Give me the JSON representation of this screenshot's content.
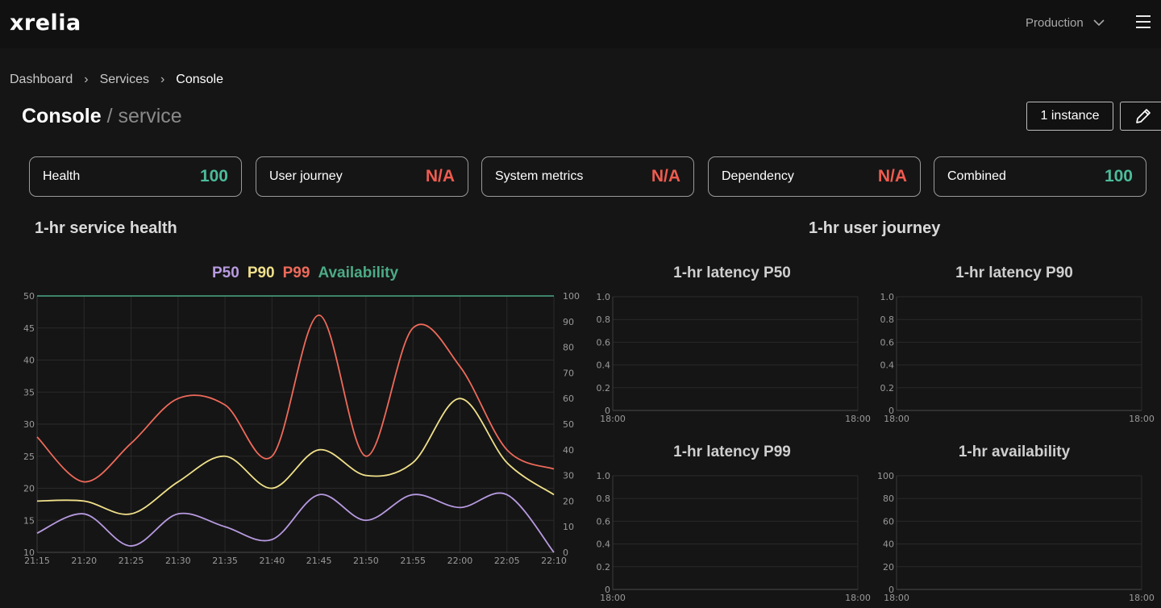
{
  "app": {
    "logo": "xrelia",
    "environment": "Production"
  },
  "icons": {
    "menu": "hamburger-icon",
    "env_dropdown": "chevron-down-icon",
    "edit": "pencil-icon"
  },
  "breadcrumb": [
    "Dashboard",
    "Services",
    "Console"
  ],
  "page": {
    "title": "Console",
    "subtitle": "/ service",
    "instance_label": "1 instance"
  },
  "colors": {
    "green": "#4cbb9a",
    "red": "#ef5b4f",
    "p50": "#b79ae0",
    "p90": "#f0e08a",
    "p99": "#ef6a5a",
    "availability": "#4caa86"
  },
  "cards": [
    {
      "label": "Health",
      "value": "100",
      "status": "green"
    },
    {
      "label": "User journey",
      "value": "N/A",
      "status": "red"
    },
    {
      "label": "System metrics",
      "value": "N/A",
      "status": "red"
    },
    {
      "label": "Dependency",
      "value": "N/A",
      "status": "red"
    },
    {
      "label": "Combined",
      "value": "100",
      "status": "green"
    }
  ],
  "sections": {
    "service_health": "1-hr service health",
    "user_journey": "1-hr user journey"
  },
  "legend": [
    "P50",
    "P90",
    "P99",
    "Availability"
  ],
  "chart_data": [
    {
      "type": "line",
      "x": [
        "21:15",
        "21:20",
        "21:25",
        "21:30",
        "21:35",
        "21:40",
        "21:45",
        "21:50",
        "21:55",
        "22:00",
        "22:05",
        "22:10"
      ],
      "ylim": [
        10,
        50
      ],
      "yticks": [
        10,
        15,
        20,
        25,
        30,
        35,
        40,
        45,
        50
      ],
      "y2lim": [
        0,
        100
      ],
      "y2ticks": [
        0,
        10,
        20,
        30,
        40,
        50,
        60,
        70,
        80,
        90,
        100
      ],
      "grid": true,
      "series": [
        {
          "name": "P50",
          "axis": "left",
          "values": [
            13,
            16,
            11,
            16,
            14,
            12,
            19,
            15,
            19,
            17,
            19,
            10
          ]
        },
        {
          "name": "P90",
          "axis": "left",
          "values": [
            18,
            18,
            16,
            21,
            25,
            20,
            26,
            22,
            24,
            34,
            24,
            19
          ]
        },
        {
          "name": "P99",
          "axis": "left",
          "values": [
            28,
            21,
            27,
            34,
            33,
            25,
            47,
            25,
            45,
            39,
            26,
            23
          ]
        },
        {
          "name": "Availability",
          "axis": "right",
          "values": [
            100,
            100,
            100,
            100,
            100,
            100,
            100,
            100,
            100,
            100,
            100,
            100
          ]
        }
      ]
    },
    {
      "type": "line",
      "title": "1-hr latency P50",
      "x": [
        "18:00",
        "18:00"
      ],
      "ylim": [
        0,
        1.0
      ],
      "yticks": [
        "0",
        "0.2",
        "0.4",
        "0.6",
        "0.8",
        "1.0"
      ],
      "series": []
    },
    {
      "type": "line",
      "title": "1-hr latency P90",
      "x": [
        "18:00",
        "18:00"
      ],
      "ylim": [
        0,
        1.0
      ],
      "yticks": [
        "0",
        "0.2",
        "0.4",
        "0.6",
        "0.8",
        "1.0"
      ],
      "series": []
    },
    {
      "type": "line",
      "title": "1-hr latency P99",
      "x": [
        "18:00",
        "18:00"
      ],
      "ylim": [
        0,
        1.0
      ],
      "yticks": [
        "0",
        "0.2",
        "0.4",
        "0.6",
        "0.8",
        "1.0"
      ],
      "series": []
    },
    {
      "type": "line",
      "title": "1-hr availability",
      "x": [
        "18:00",
        "18:00"
      ],
      "ylim": [
        0,
        100
      ],
      "yticks": [
        "0",
        "20",
        "40",
        "60",
        "80",
        "100"
      ],
      "series": []
    }
  ]
}
